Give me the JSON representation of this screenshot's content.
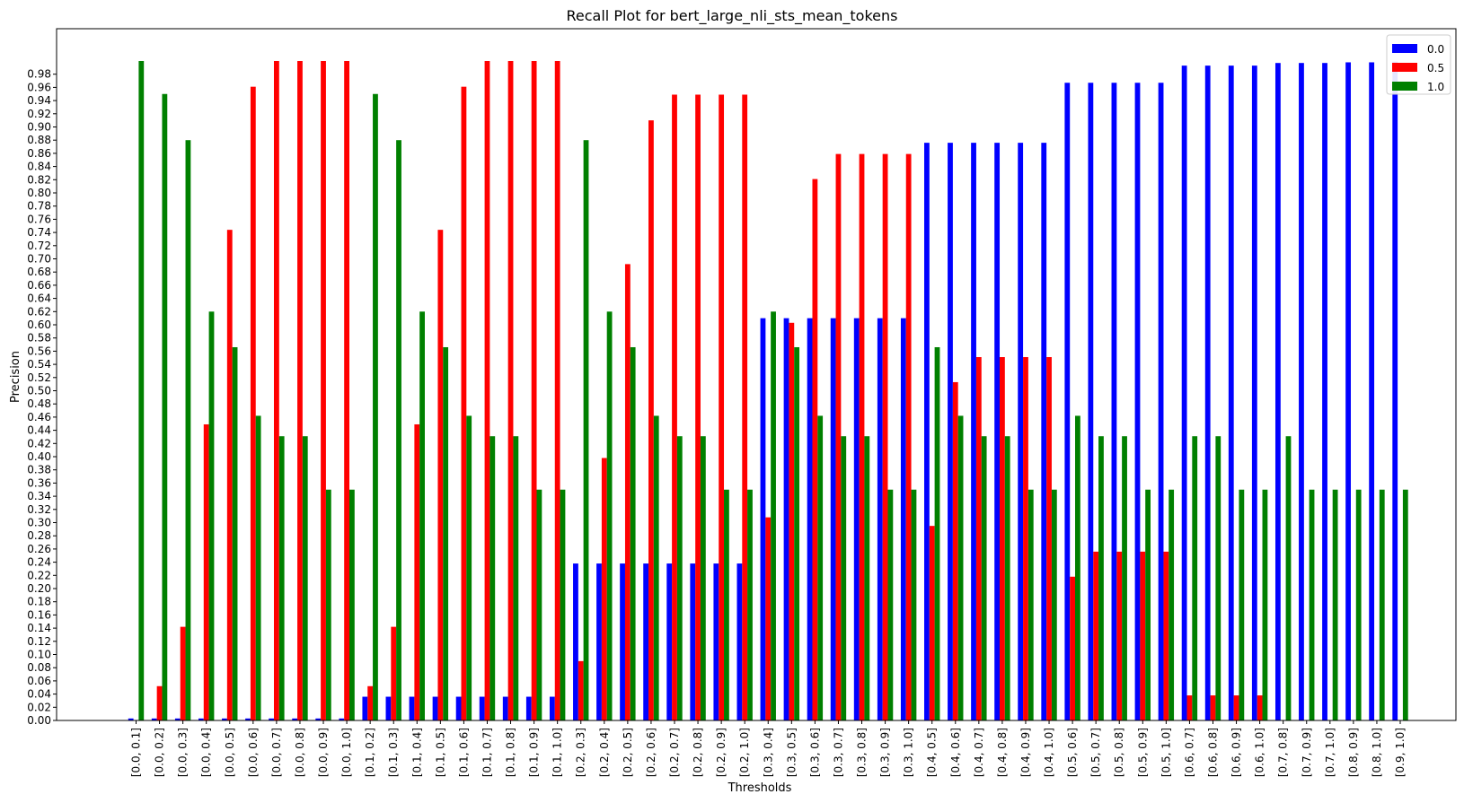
{
  "chart_data": {
    "type": "bar",
    "title": "Recall Plot for bert_large_nli_sts_mean_tokens",
    "xlabel": "Thresholds",
    "ylabel": "Precision",
    "ylim": [
      0,
      1.0
    ],
    "yticks": [
      "0.00",
      "0.02",
      "0.04",
      "0.06",
      "0.08",
      "0.10",
      "0.12",
      "0.14",
      "0.16",
      "0.18",
      "0.20",
      "0.22",
      "0.24",
      "0.26",
      "0.28",
      "0.30",
      "0.32",
      "0.34",
      "0.36",
      "0.38",
      "0.40",
      "0.42",
      "0.44",
      "0.46",
      "0.48",
      "0.50",
      "0.52",
      "0.54",
      "0.56",
      "0.58",
      "0.60",
      "0.62",
      "0.64",
      "0.66",
      "0.68",
      "0.70",
      "0.72",
      "0.74",
      "0.76",
      "0.78",
      "0.80",
      "0.82",
      "0.84",
      "0.86",
      "0.88",
      "0.90",
      "0.92",
      "0.94",
      "0.96",
      "0.98"
    ],
    "legend_position": "top-right",
    "grid": false,
    "categories": [
      "[0.0, 0.1]",
      "[0.0, 0.2]",
      "[0.0, 0.3]",
      "[0.0, 0.4]",
      "[0.0, 0.5]",
      "[0.0, 0.6]",
      "[0.0, 0.7]",
      "[0.0, 0.8]",
      "[0.0, 0.9]",
      "[0.0, 1.0]",
      "[0.1, 0.2]",
      "[0.1, 0.3]",
      "[0.1, 0.4]",
      "[0.1, 0.5]",
      "[0.1, 0.6]",
      "[0.1, 0.7]",
      "[0.1, 0.8]",
      "[0.1, 0.9]",
      "[0.1, 1.0]",
      "[0.2, 0.3]",
      "[0.2, 0.4]",
      "[0.2, 0.5]",
      "[0.2, 0.6]",
      "[0.2, 0.7]",
      "[0.2, 0.8]",
      "[0.2, 0.9]",
      "[0.2, 1.0]",
      "[0.3, 0.4]",
      "[0.3, 0.5]",
      "[0.3, 0.6]",
      "[0.3, 0.7]",
      "[0.3, 0.8]",
      "[0.3, 0.9]",
      "[0.3, 1.0]",
      "[0.4, 0.5]",
      "[0.4, 0.6]",
      "[0.4, 0.7]",
      "[0.4, 0.8]",
      "[0.4, 0.9]",
      "[0.4, 1.0]",
      "[0.5, 0.6]",
      "[0.5, 0.7]",
      "[0.5, 0.8]",
      "[0.5, 0.9]",
      "[0.5, 1.0]",
      "[0.6, 0.7]",
      "[0.6, 0.8]",
      "[0.6, 0.9]",
      "[0.6, 1.0]",
      "[0.7, 0.8]",
      "[0.7, 0.9]",
      "[0.7, 1.0]",
      "[0.8, 0.9]",
      "[0.8, 1.0]",
      "[0.9, 1.0]"
    ],
    "series": [
      {
        "name": "0.0",
        "color": "#0000ff",
        "values": [
          0.003,
          0.003,
          0.003,
          0.003,
          0.003,
          0.003,
          0.003,
          0.003,
          0.003,
          0.003,
          0.036,
          0.036,
          0.036,
          0.036,
          0.036,
          0.036,
          0.036,
          0.036,
          0.036,
          0.238,
          0.238,
          0.238,
          0.238,
          0.238,
          0.238,
          0.238,
          0.238,
          0.61,
          0.61,
          0.61,
          0.61,
          0.61,
          0.61,
          0.61,
          0.876,
          0.876,
          0.876,
          0.876,
          0.876,
          0.876,
          0.967,
          0.967,
          0.967,
          0.967,
          0.967,
          0.993,
          0.993,
          0.993,
          0.993,
          0.997,
          0.997,
          0.997,
          0.998,
          0.998,
          0.999
        ]
      },
      {
        "name": "0.5",
        "color": "#ff0000",
        "values": [
          0,
          0.052,
          0.142,
          0.449,
          0.744,
          0.961,
          1.0,
          1.0,
          1.0,
          1.0,
          0.052,
          0.142,
          0.449,
          0.744,
          0.961,
          1.0,
          1.0,
          1.0,
          1.0,
          0.09,
          0.398,
          0.692,
          0.91,
          0.949,
          0.949,
          0.949,
          0.949,
          0.308,
          0.603,
          0.821,
          0.859,
          0.859,
          0.859,
          0.859,
          0.295,
          0.513,
          0.551,
          0.551,
          0.551,
          0.551,
          0.218,
          0.256,
          0.256,
          0.256,
          0.256,
          0.038,
          0.038,
          0.038,
          0.038,
          0,
          0,
          0,
          0,
          0,
          0
        ]
      },
      {
        "name": "1.0",
        "color": "#008000",
        "values": [
          1.0,
          0.95,
          0.88,
          0.62,
          0.566,
          0.462,
          0.431,
          0.431,
          0.35,
          0.35,
          0.95,
          0.88,
          0.62,
          0.566,
          0.462,
          0.431,
          0.431,
          0.35,
          0.35,
          0.88,
          0.62,
          0.566,
          0.462,
          0.431,
          0.431,
          0.35,
          0.35,
          0.62,
          0.566,
          0.462,
          0.431,
          0.431,
          0.35,
          0.35,
          0.566,
          0.462,
          0.431,
          0.431,
          0.35,
          0.35,
          0.462,
          0.431,
          0.431,
          0.35,
          0.35,
          0.431,
          0.431,
          0.35,
          0.35,
          0.431,
          0.35,
          0.35,
          0.35,
          0.35,
          0.35
        ]
      }
    ]
  }
}
